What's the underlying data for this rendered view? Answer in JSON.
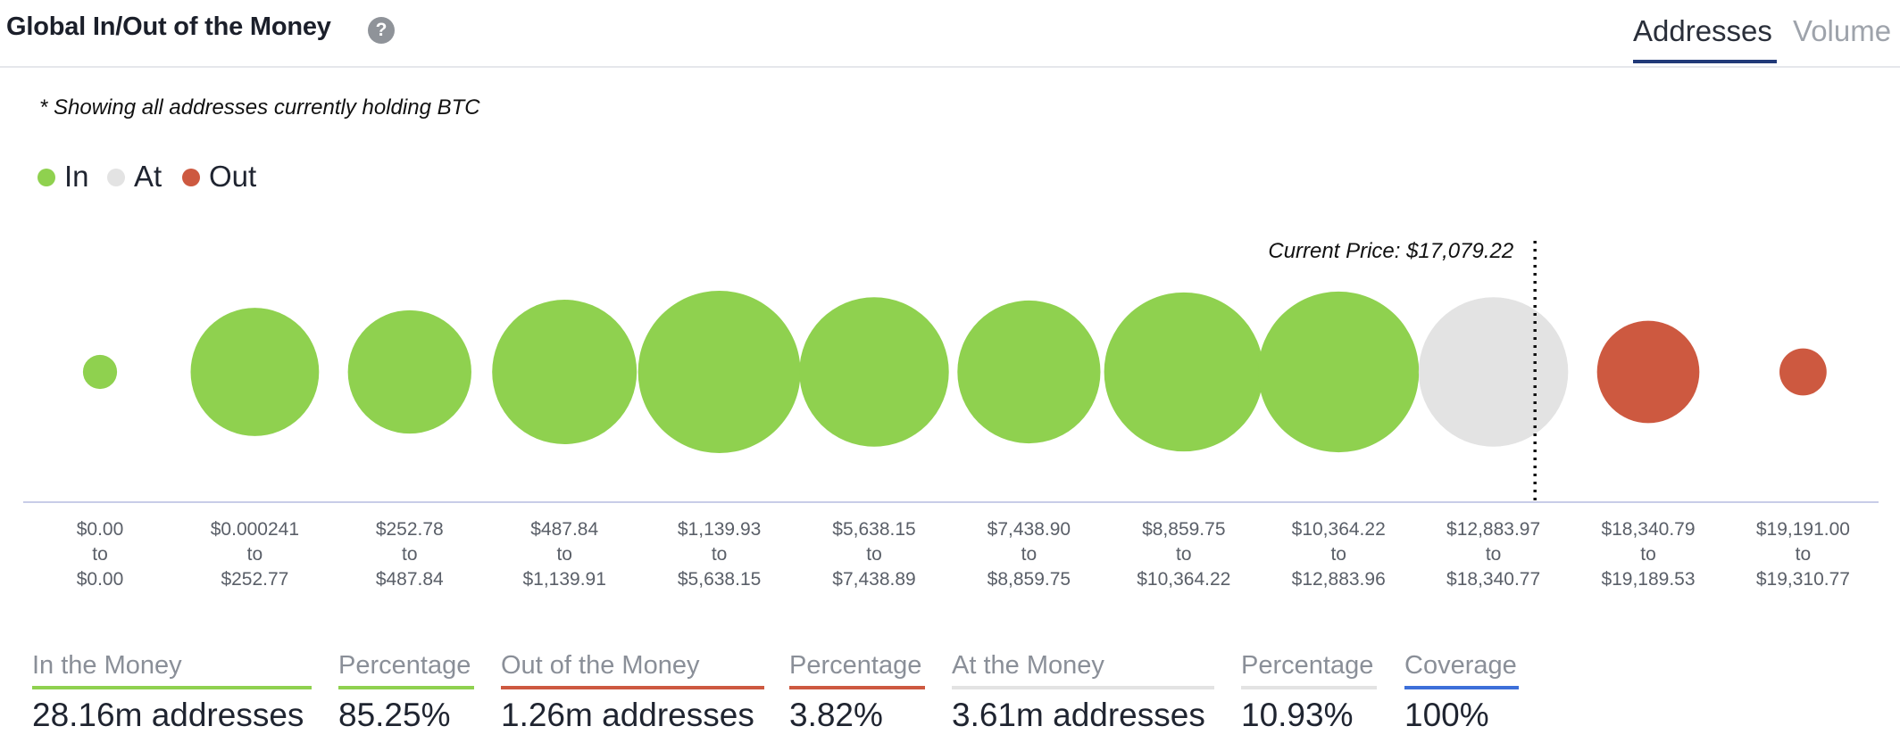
{
  "header": {
    "title": "Global In/Out of the Money",
    "help_icon": "question-circle-icon",
    "tabs": [
      {
        "label": "Addresses",
        "active": true
      },
      {
        "label": "Volume",
        "active": false
      }
    ]
  },
  "note": "* Showing all addresses currently holding BTC",
  "legend": [
    {
      "label": "In",
      "color": "#8fd14f"
    },
    {
      "label": "At",
      "color": "#e3e3e3"
    },
    {
      "label": "Out",
      "color": "#cd5940"
    }
  ],
  "chart_data": {
    "type": "scatter",
    "title": "",
    "xlabel": "",
    "ylabel": "",
    "grid": false,
    "legend_position": "top-left",
    "current_price_label": "Current Price: $17,079.22",
    "current_price": 17079.22,
    "colors": {
      "In": "#8fd14f",
      "At": "#e3e3e3",
      "Out": "#cd5940"
    },
    "bubble_size_note": "relative number of addresses (estimated from bubble size)",
    "series": [
      {
        "name": "In",
        "range": [
          "$0.00",
          "$0.00"
        ],
        "size": 0.21
      },
      {
        "name": "In",
        "range": [
          "$0.000241",
          "$252.77"
        ],
        "size": 0.79
      },
      {
        "name": "In",
        "range": [
          "$252.78",
          "$487.84"
        ],
        "size": 0.76
      },
      {
        "name": "In",
        "range": [
          "$487.84",
          "$1,139.91"
        ],
        "size": 0.89
      },
      {
        "name": "In",
        "range": [
          "$1,139.93",
          "$5,638.15"
        ],
        "size": 1.0
      },
      {
        "name": "In",
        "range": [
          "$5,638.15",
          "$7,438.89"
        ],
        "size": 0.92
      },
      {
        "name": "In",
        "range": [
          "$7,438.90",
          "$8,859.75"
        ],
        "size": 0.88
      },
      {
        "name": "In",
        "range": [
          "$8,859.75",
          "$10,364.22"
        ],
        "size": 0.98
      },
      {
        "name": "In",
        "range": [
          "$10,364.22",
          "$12,883.96"
        ],
        "size": 0.99
      },
      {
        "name": "At",
        "range": [
          "$12,883.97",
          "$18,340.77"
        ],
        "size": 0.92
      },
      {
        "name": "Out",
        "range": [
          "$18,340.79",
          "$19,189.53"
        ],
        "size": 0.63
      },
      {
        "name": "Out",
        "range": [
          "$19,191.00",
          "$19,310.77"
        ],
        "size": 0.29
      }
    ],
    "range_joiner": "to"
  },
  "summary": [
    {
      "label": "In the Money",
      "value": "28.16m addresses",
      "color": "#8fd14f"
    },
    {
      "label": "Percentage",
      "value": "85.25%",
      "color": "#8fd14f"
    },
    {
      "label": "Out of the Money",
      "value": "1.26m addresses",
      "color": "#cd5940"
    },
    {
      "label": "Percentage",
      "value": "3.82%",
      "color": "#cd5940"
    },
    {
      "label": "At the Money",
      "value": "3.61m addresses",
      "color": "#e3e3e3"
    },
    {
      "label": "Percentage",
      "value": "10.93%",
      "color": "#e3e3e3"
    },
    {
      "label": "Coverage",
      "value": "100%",
      "color": "#3d6fd9"
    }
  ]
}
